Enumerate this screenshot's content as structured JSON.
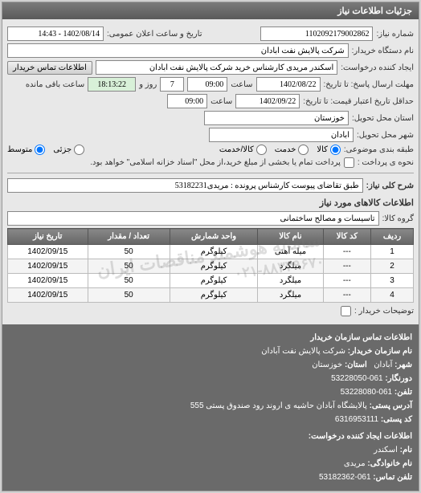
{
  "panel": {
    "title": "جزئیات اطلاعات نیاز"
  },
  "fields": {
    "req_no_label": "شماره نیاز:",
    "req_no": "1102092179002862",
    "announce_label": "تاریخ و ساعت اعلان عمومی:",
    "announce_val": "1402/08/14 - 14:43",
    "buyer_org_label": "نام دستگاه خریدار:",
    "buyer_org": "شرکت پالایش نفت آبادان",
    "requester_label": "ایجاد کننده درخواست:",
    "requester": "اسکندر مریدی کارشناس خرید شرکت پالایش نفت آبادان",
    "buyer_contact_btn": "اطلاعات تماس خریدار",
    "deadline_label": "مهلت ارسال پاسخ: تا تاریخ:",
    "deadline_date": "1402/08/22",
    "time_label": "ساعت",
    "deadline_time": "09:00",
    "days_remain": "7",
    "days_label": "روز و",
    "hours_remain": "18:13:22",
    "hours_label": "ساعت باقی مانده",
    "validity_label": "حداقل تاریخ اعتبار قیمت: تا تاریخ:",
    "validity_date": "1402/09/22",
    "validity_time": "09:00",
    "province_label": "استان محل تحویل:",
    "province": "خوزستان",
    "city_label": "شهر محل تحویل:",
    "city": "آبادان",
    "class_label": "طبقه بندی موضوعی:",
    "radio_goods": "کالا",
    "radio_service": "خدمت",
    "radio_goods_service": "کالا/خدمت",
    "partial": "جزئی",
    "full": "متوسط",
    "pay_label": "نحوه ی پرداخت :",
    "pay_note": "پرداخت تمام یا بخشی از مبلغ خرید،از محل \"اسناد خزانه اسلامی\" خواهد بود.",
    "desc_label": "شرح کلی نیاز:",
    "desc_val": "طبق تقاضای پیوست کارشناس پرونده : مریدی53182231",
    "goods_section": "اطلاعات کالاهای مورد نیاز",
    "group_label": "گروه کالا:",
    "group_val": "تاسیسات و مصالح ساختمانی",
    "buyer_notes_label": "توضیحات خریدار :"
  },
  "table": {
    "headers": [
      "ردیف",
      "کد کالا",
      "نام کالا",
      "واحد شمارش",
      "تعداد / مقدار",
      "تاریخ نیاز"
    ],
    "rows": [
      [
        "1",
        "---",
        "میله آهنی",
        "کیلوگرم",
        "50",
        "1402/09/15"
      ],
      [
        "2",
        "---",
        "میلگرد",
        "کیلوگرم",
        "50",
        "1402/09/15"
      ],
      [
        "3",
        "---",
        "میلگرد",
        "کیلوگرم",
        "50",
        "1402/09/15"
      ],
      [
        "4",
        "---",
        "میلگرد",
        "کیلوگرم",
        "50",
        "1402/09/15"
      ]
    ]
  },
  "watermark": "سامانه هوشمند مناقصات ایران",
  "watermark_phone": "۰۲۱-۸۸۳۴۹۶۷۰",
  "contact": {
    "heading": "اطلاعات تماس سازمان خریدار",
    "org_name_label": "نام سازمان خریدار:",
    "org_name": "شرکت پالایش نفت آبادان",
    "city_label": "شهر:",
    "city": "آبادان",
    "province_label": "استان:",
    "province": "خوزستان",
    "fax_label": "دورنگار:",
    "fax": "061-53228050",
    "phone_label": "تلفن:",
    "phone": "061-53228080",
    "address_label": "آدرس پستی:",
    "address": "پالایشگاه آبادان حاشیه ی اروند رود صندوق پستی 555",
    "postal_label": "کد پستی:",
    "postal": "6316953111",
    "creator_heading": "اطلاعات ایجاد کننده درخواست:",
    "name_label": "نام:",
    "name": "اسکندر",
    "family_label": "نام خانوادگی:",
    "family": "مریدی",
    "contact_phone_label": "تلفن تماس:",
    "contact_phone": "061-53182362"
  }
}
